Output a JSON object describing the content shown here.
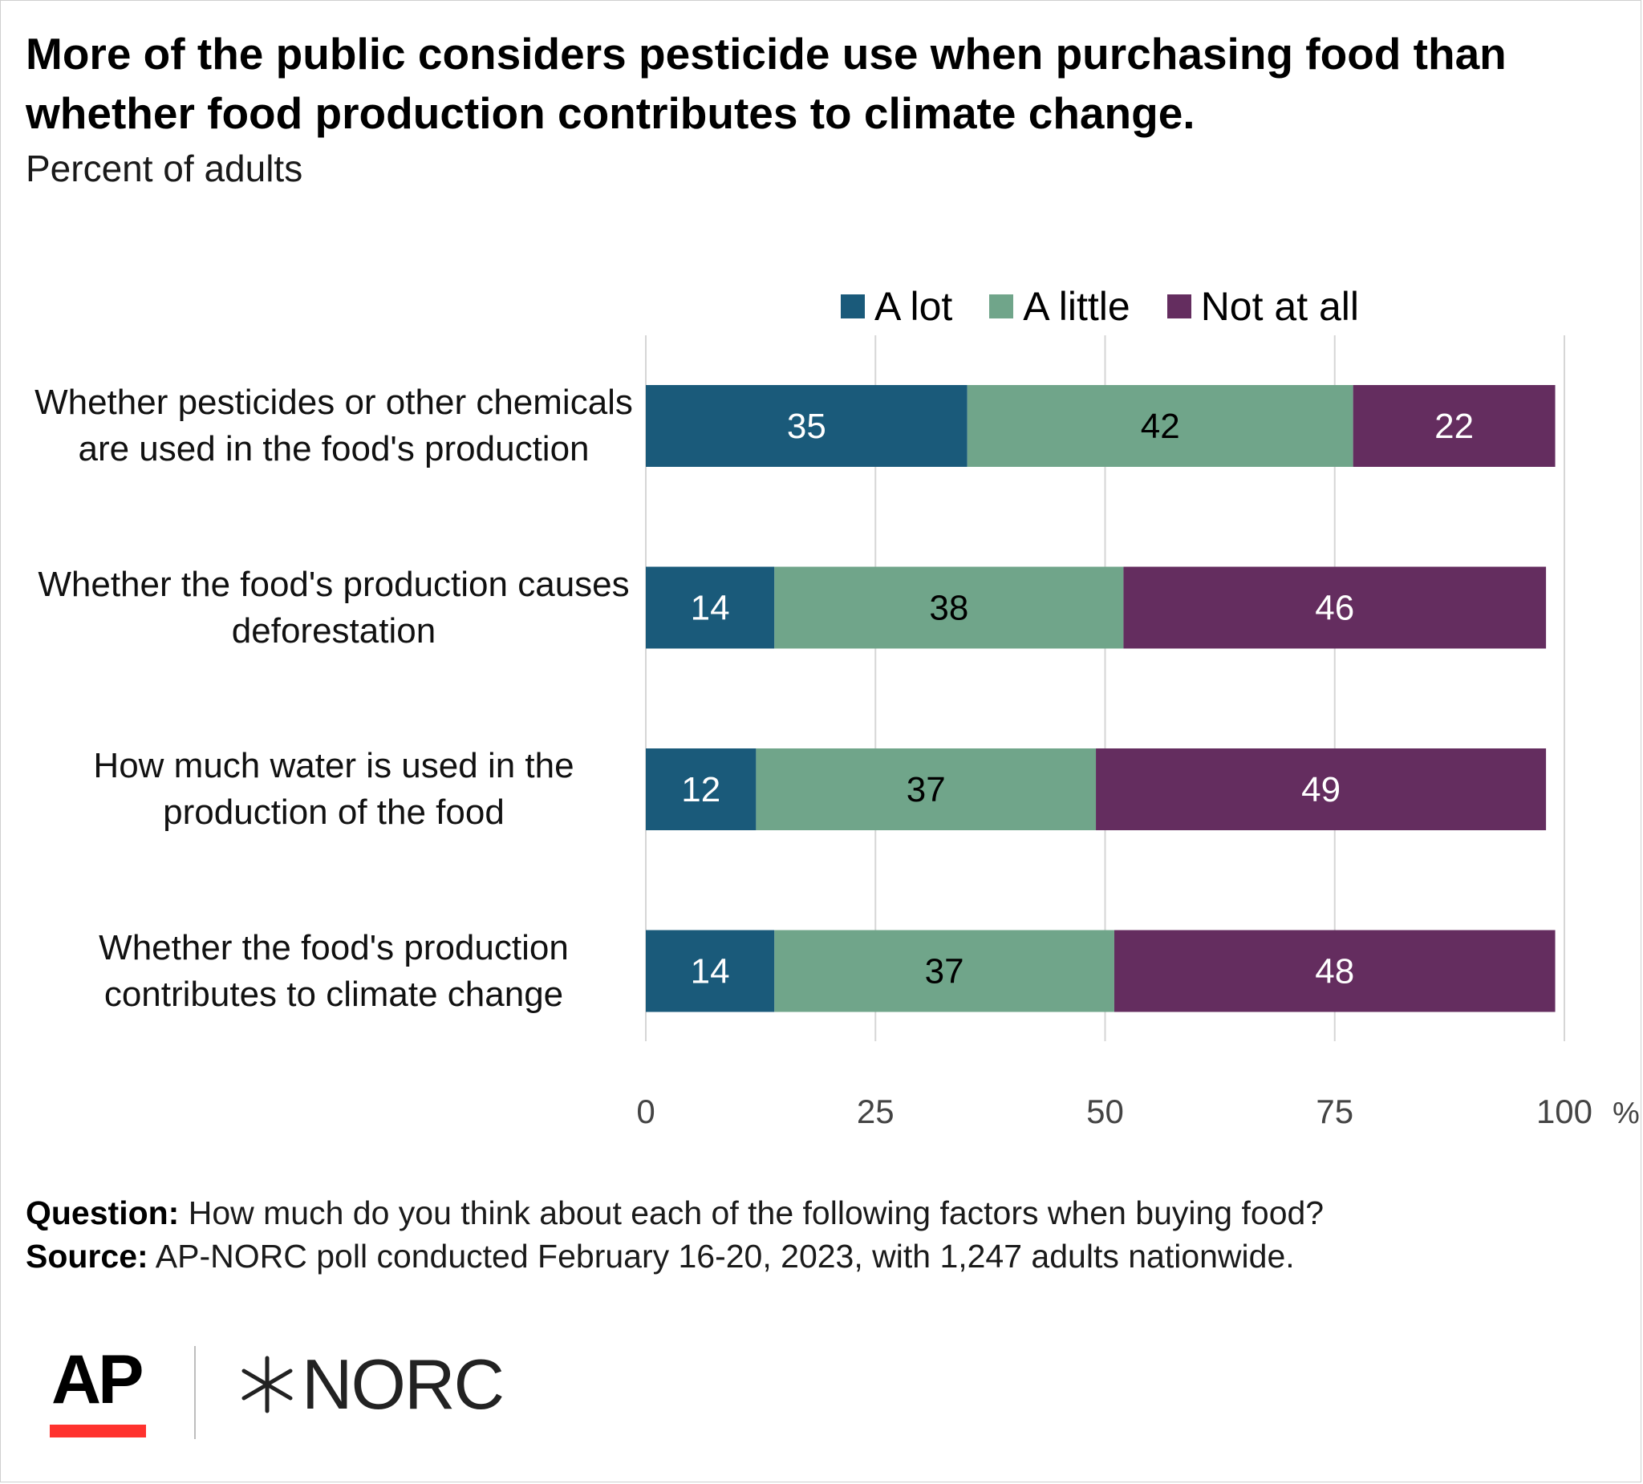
{
  "header": {
    "title": "More of the public considers pesticide use when purchasing food than whether food production contributes to climate change.",
    "subtitle": "Percent of adults"
  },
  "legend": {
    "items": [
      {
        "label": "A lot",
        "color": "#1a5a7a"
      },
      {
        "label": "A little",
        "color": "#70a58a"
      },
      {
        "label": "Not at all",
        "color": "#642d5f"
      }
    ]
  },
  "chart_data": {
    "type": "bar",
    "orientation": "horizontal",
    "stacked": true,
    "categories": [
      "Whether pesticides or other chemicals are used in the food's production",
      "Whether the food's production causes deforestation",
      "How much water is used in the production of the food",
      "Whether the food's production contributes to climate change"
    ],
    "series": [
      {
        "name": "A lot",
        "color": "#1a5a7a",
        "label_color": "#ffffff",
        "values": [
          35,
          14,
          12,
          14
        ]
      },
      {
        "name": "A little",
        "color": "#70a58a",
        "label_color": "#000000",
        "values": [
          42,
          38,
          37,
          37
        ]
      },
      {
        "name": "Not at all",
        "color": "#642d5f",
        "label_color": "#ffffff",
        "values": [
          22,
          46,
          49,
          48
        ]
      }
    ],
    "xlim": [
      0,
      100
    ],
    "xticks": [
      0,
      25,
      50,
      75,
      100
    ],
    "xtick_labels": [
      "0",
      "25",
      "50",
      "75",
      "100"
    ],
    "xunit": "%",
    "grid": true,
    "legend_position": "top"
  },
  "footer": {
    "question_label": "Question:",
    "question_text": " How much do you think about each of the following factors when buying food?",
    "source_label": "Source:",
    "source_text": " AP-NORC poll conducted February 16-20, 2023, with 1,247 adults nationwide."
  },
  "logos": {
    "ap": "AP",
    "norc": "NORC"
  }
}
